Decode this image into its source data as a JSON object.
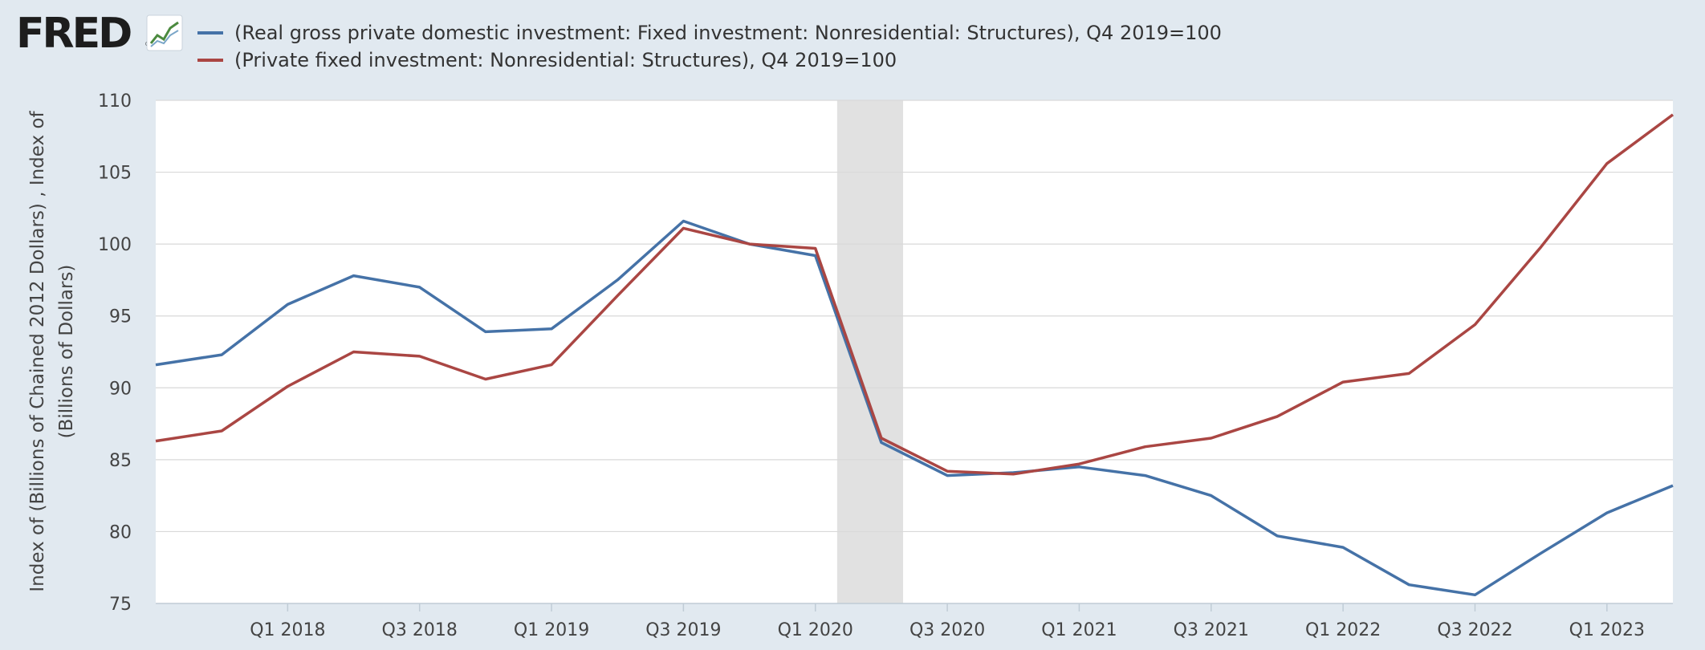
{
  "logo": {
    "text": "FRED",
    "reg": "®"
  },
  "legend": [
    {
      "label": "(Real gross private domestic investment: Fixed investment: Nonresidential: Structures), Q4 2019=100",
      "color": "#4572a7",
      "icon": "line-swatch"
    },
    {
      "label": "(Private fixed investment: Nonresidential: Structures), Q4 2019=100",
      "color": "#aa4643",
      "icon": "line-swatch"
    }
  ],
  "chart_data": {
    "type": "line",
    "ylabel_lines": [
      "Index of (Billions of Chained 2012 Dollars) , Index of",
      "(Billions of Dollars)"
    ],
    "ylim": [
      75,
      110
    ],
    "yticks": [
      75,
      80,
      85,
      90,
      95,
      100,
      105,
      110
    ],
    "x_quarters": [
      "Q3 2017",
      "Q4 2017",
      "Q1 2018",
      "Q2 2018",
      "Q3 2018",
      "Q4 2018",
      "Q1 2019",
      "Q2 2019",
      "Q3 2019",
      "Q4 2019",
      "Q1 2020",
      "Q2 2020",
      "Q3 2020",
      "Q4 2020",
      "Q1 2021",
      "Q2 2021",
      "Q3 2021",
      "Q4 2021",
      "Q1 2022",
      "Q2 2022",
      "Q3 2022",
      "Q4 2022",
      "Q1 2023",
      "Q2 2023"
    ],
    "xtick_labels": [
      "Q1 2018",
      "Q3 2018",
      "Q1 2019",
      "Q3 2019",
      "Q1 2020",
      "Q3 2020",
      "Q1 2021",
      "Q3 2021",
      "Q1 2022",
      "Q3 2022",
      "Q1 2023"
    ],
    "recession": {
      "start": "Q1 2020",
      "end": "Q2 2020"
    },
    "grid": true,
    "series": [
      {
        "name": "(Real gross private domestic investment: Fixed investment: Nonresidential: Structures), Q4 2019=100",
        "color": "#4572a7",
        "values": [
          91.6,
          92.3,
          95.8,
          97.8,
          97.0,
          93.9,
          94.1,
          97.5,
          101.6,
          100.0,
          99.2,
          86.2,
          83.9,
          84.1,
          84.5,
          83.9,
          82.5,
          79.7,
          78.9,
          76.3,
          75.6,
          78.5,
          81.3,
          83.2
        ]
      },
      {
        "name": "(Private fixed investment: Nonresidential: Structures), Q4 2019=100",
        "color": "#aa4643",
        "values": [
          86.3,
          87.0,
          90.1,
          92.5,
          92.2,
          90.6,
          91.6,
          96.4,
          101.1,
          100.0,
          99.7,
          86.5,
          84.2,
          84.0,
          84.7,
          85.9,
          86.5,
          88.0,
          90.4,
          91.0,
          94.4,
          99.8,
          105.6,
          109.0
        ]
      }
    ]
  }
}
